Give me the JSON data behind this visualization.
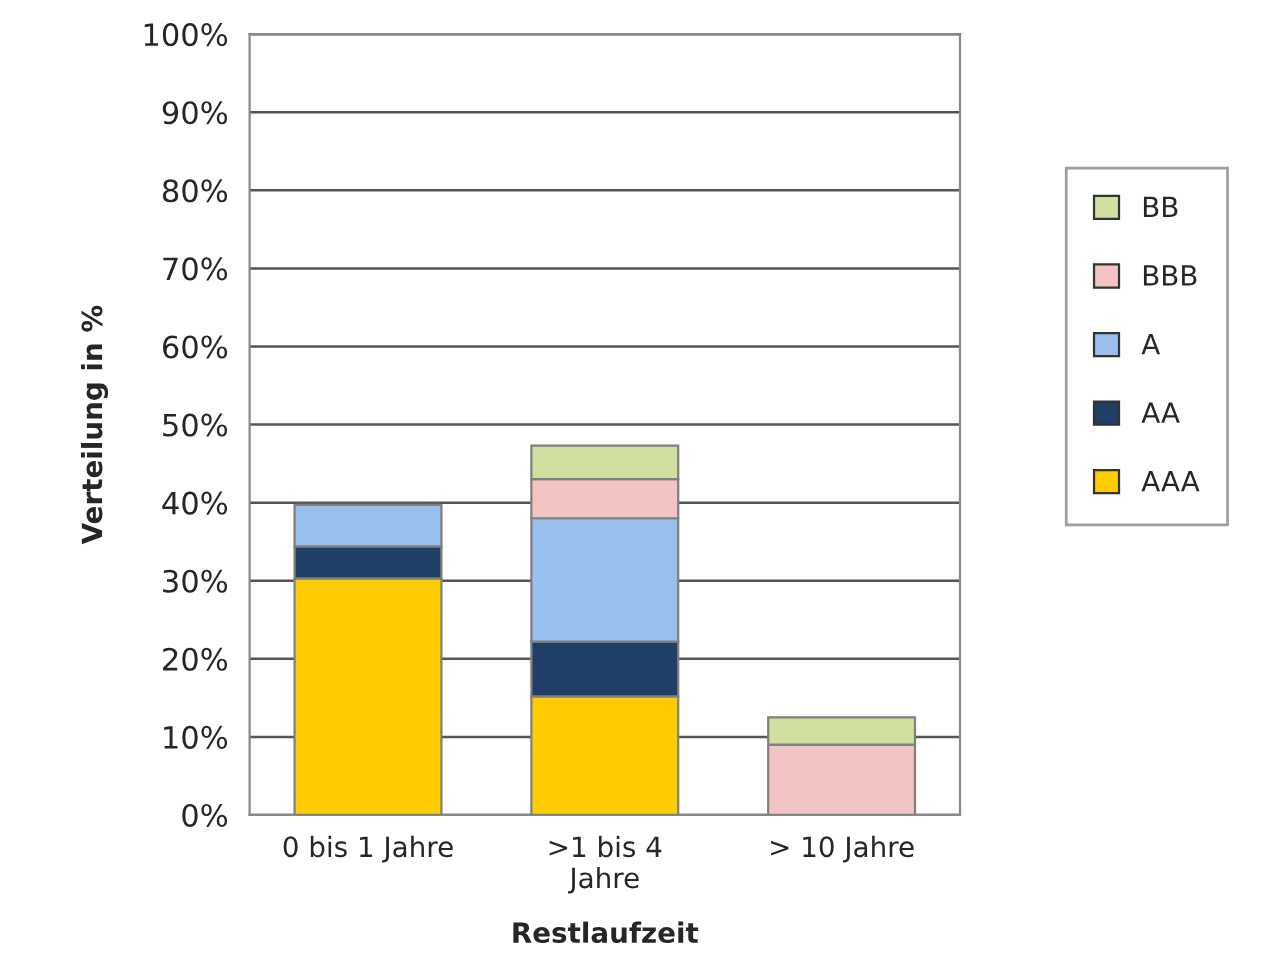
{
  "chart_data": {
    "type": "bar",
    "stacked": true,
    "xlabel": "Restlaufzeit",
    "ylabel": "Verteilung in %",
    "categories": [
      "0 bis 1 Jahre",
      ">1 bis 4\nJahre",
      "> 10 Jahre"
    ],
    "series": [
      {
        "name": "AAA",
        "color": "#ffcc00",
        "values": [
          30.3,
          15.2,
          null
        ]
      },
      {
        "name": "AA",
        "color": "#1f3f66",
        "values": [
          4.1,
          7.0,
          null
        ]
      },
      {
        "name": "A",
        "color": "#99c0ec",
        "values": [
          5.3,
          15.8,
          null
        ]
      },
      {
        "name": "BBB",
        "color": "#f2c4c4",
        "values": [
          null,
          5.0,
          9.0
        ]
      },
      {
        "name": "BB",
        "color": "#cfe0a0",
        "values": [
          null,
          4.3,
          3.5
        ]
      }
    ],
    "ylim": [
      0,
      100
    ],
    "yticks": [
      {
        "value": 0,
        "label": "0%"
      },
      {
        "value": 10,
        "label": "10%"
      },
      {
        "value": 20,
        "label": "20%"
      },
      {
        "value": 30,
        "label": "30%"
      },
      {
        "value": 40,
        "label": "40%"
      },
      {
        "value": 50,
        "label": "50%"
      },
      {
        "value": 60,
        "label": "60%"
      },
      {
        "value": 70,
        "label": "70%"
      },
      {
        "value": 80,
        "label": "80%"
      },
      {
        "value": 90,
        "label": "90%"
      },
      {
        "value": 100,
        "label": "100%"
      }
    ],
    "grid": "y",
    "legend": "right"
  }
}
